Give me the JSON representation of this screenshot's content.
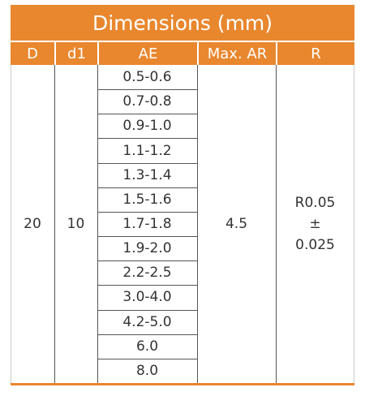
{
  "table": {
    "title": "Dimensions (mm)",
    "columns": [
      "D",
      "d1",
      "AE",
      "Max. AR",
      "R"
    ],
    "D": "20",
    "d1": "10",
    "AE": [
      "0.5-0.6",
      "0.7-0.8",
      "0.9-1.0",
      "1.1-1.2",
      "1.3-1.4",
      "1.5-1.6",
      "1.7-1.8",
      "1.9-2.0",
      "2.2-2.5",
      "3.0-4.0",
      "4.2-5.0",
      "6.0",
      "8.0"
    ],
    "max_ar": "4.5",
    "R": [
      "R0.05",
      "±",
      "0.025"
    ]
  }
}
